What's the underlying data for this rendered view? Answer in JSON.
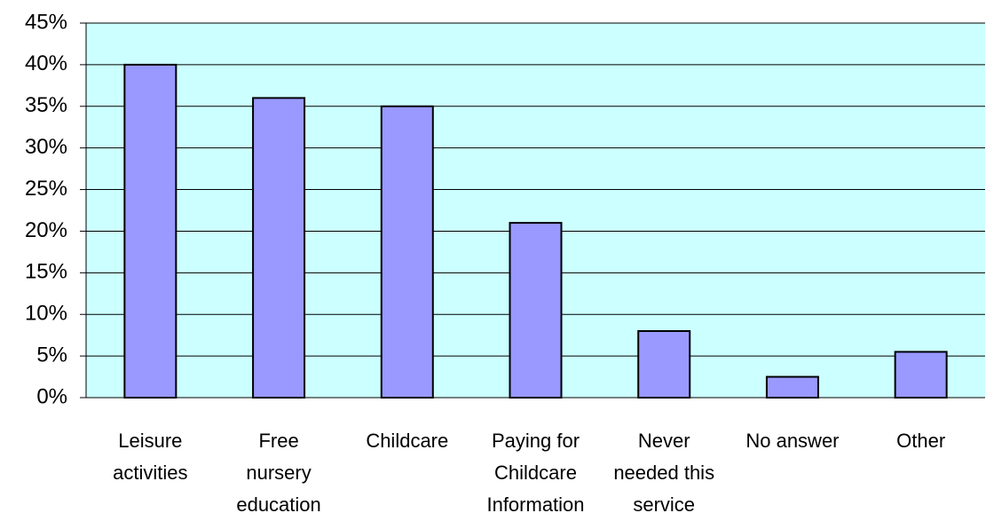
{
  "chart_data": {
    "type": "bar",
    "categories": [
      "Leisure activities",
      "Free nursery education",
      "Childcare",
      "Paying for Childcare Information",
      "Never needed this service",
      "No answer",
      "Other"
    ],
    "values": [
      40,
      36,
      35,
      21,
      8,
      2.5,
      5.5
    ],
    "color": "#9999ff",
    "background": "#ccffff",
    "ylim": [
      0,
      45
    ],
    "yticks": [
      {
        "value": 0,
        "label": "0%"
      },
      {
        "value": 5,
        "label": "5%"
      },
      {
        "value": 10,
        "label": "10%"
      },
      {
        "value": 15,
        "label": "15%"
      },
      {
        "value": 20,
        "label": "20%"
      },
      {
        "value": 25,
        "label": "25%"
      },
      {
        "value": 30,
        "label": "30%"
      },
      {
        "value": 35,
        "label": "35%"
      },
      {
        "value": 40,
        "label": "40%"
      },
      {
        "value": 45,
        "label": "45%"
      }
    ],
    "grid": true
  }
}
